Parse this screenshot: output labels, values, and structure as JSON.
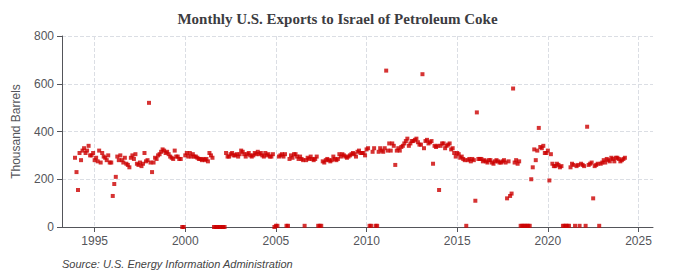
{
  "chart_data": {
    "type": "scatter",
    "title": "Monthly U.S. Exports to Israel of Petroleum Coke",
    "ylabel": "Thousand Barrels",
    "annotation": "Source: U.S. Energy Information Administration",
    "color": "#cc0000",
    "marker": "square",
    "grid": true,
    "xlim": [
      1993.2,
      2025.8
    ],
    "xticks": [
      1995,
      2000,
      2005,
      2010,
      2015,
      2020,
      2025
    ],
    "ylim": [
      0,
      800
    ],
    "yticks": [
      0,
      200,
      400,
      600,
      800
    ],
    "x": [
      1993.917,
      1994.0,
      1994.083,
      1994.167,
      1994.25,
      1994.333,
      1994.417,
      1994.5,
      1994.583,
      1994.667,
      1994.75,
      1994.833,
      1994.917,
      1995.0,
      1995.083,
      1995.167,
      1995.25,
      1995.333,
      1995.417,
      1995.5,
      1995.583,
      1995.667,
      1995.75,
      1995.833,
      1995.917,
      1996.0,
      1996.083,
      1996.167,
      1996.25,
      1996.333,
      1996.417,
      1996.5,
      1996.583,
      1996.667,
      1996.75,
      1996.833,
      1996.917,
      1997.0,
      1997.083,
      1997.167,
      1997.25,
      1997.333,
      1997.417,
      1997.5,
      1997.583,
      1997.667,
      1997.75,
      1997.833,
      1997.917,
      1998.0,
      1998.083,
      1998.167,
      1998.25,
      1998.333,
      1998.417,
      1998.5,
      1998.583,
      1998.667,
      1998.75,
      1998.833,
      1998.917,
      1999.0,
      1999.083,
      1999.167,
      1999.25,
      1999.333,
      1999.417,
      1999.5,
      1999.583,
      1999.667,
      1999.75,
      1999.833,
      1999.917,
      2000.0,
      2000.083,
      2000.167,
      2000.25,
      2000.333,
      2000.417,
      2000.5,
      2000.583,
      2000.667,
      2000.75,
      2000.833,
      2000.917,
      2001.0,
      2001.083,
      2001.167,
      2001.25,
      2001.333,
      2001.417,
      2001.5,
      2001.583,
      2001.667,
      2001.75,
      2001.833,
      2001.917,
      2002.0,
      2002.083,
      2002.167,
      2002.25,
      2002.333,
      2002.417,
      2002.5,
      2002.583,
      2002.667,
      2002.75,
      2002.833,
      2002.917,
      2003.0,
      2003.083,
      2003.167,
      2003.25,
      2003.333,
      2003.417,
      2003.5,
      2003.583,
      2003.667,
      2003.75,
      2003.833,
      2003.917,
      2004.0,
      2004.083,
      2004.167,
      2004.25,
      2004.333,
      2004.417,
      2004.5,
      2004.583,
      2004.667,
      2004.75,
      2004.833,
      2004.917,
      2005.0,
      2005.083,
      2005.167,
      2005.25,
      2005.333,
      2005.417,
      2005.5,
      2005.583,
      2005.667,
      2005.75,
      2005.833,
      2005.917,
      2006.0,
      2006.083,
      2006.167,
      2006.25,
      2006.333,
      2006.417,
      2006.5,
      2006.583,
      2006.667,
      2006.75,
      2006.833,
      2006.917,
      2007.0,
      2007.083,
      2007.167,
      2007.25,
      2007.333,
      2007.417,
      2007.5,
      2007.583,
      2007.667,
      2007.75,
      2007.833,
      2007.917,
      2008.0,
      2008.083,
      2008.167,
      2008.25,
      2008.333,
      2008.417,
      2008.5,
      2008.583,
      2008.667,
      2008.75,
      2008.833,
      2008.917,
      2009.0,
      2009.083,
      2009.167,
      2009.25,
      2009.333,
      2009.417,
      2009.5,
      2009.583,
      2009.667,
      2009.75,
      2009.833,
      2009.917,
      2010.0,
      2010.083,
      2010.167,
      2010.25,
      2010.333,
      2010.417,
      2010.5,
      2010.583,
      2010.667,
      2010.75,
      2010.833,
      2010.917,
      2011.0,
      2011.083,
      2011.167,
      2011.25,
      2011.333,
      2011.417,
      2011.5,
      2011.583,
      2011.667,
      2011.75,
      2011.833,
      2011.917,
      2012.0,
      2012.083,
      2012.167,
      2012.25,
      2012.333,
      2012.417,
      2012.5,
      2012.583,
      2012.667,
      2012.75,
      2012.833,
      2012.917,
      2013.0,
      2013.083,
      2013.167,
      2013.25,
      2013.333,
      2013.417,
      2013.5,
      2013.583,
      2013.667,
      2013.75,
      2013.833,
      2013.917,
      2014.0,
      2014.083,
      2014.167,
      2014.25,
      2014.333,
      2014.417,
      2014.5,
      2014.583,
      2014.667,
      2014.75,
      2014.833,
      2014.917,
      2015.0,
      2015.083,
      2015.167,
      2015.25,
      2015.333,
      2015.417,
      2015.5,
      2015.583,
      2015.667,
      2015.75,
      2015.833,
      2015.917,
      2016.0,
      2016.083,
      2016.167,
      2016.25,
      2016.333,
      2016.417,
      2016.5,
      2016.583,
      2016.667,
      2016.75,
      2016.833,
      2016.917,
      2017.0,
      2017.083,
      2017.167,
      2017.25,
      2017.333,
      2017.417,
      2017.5,
      2017.583,
      2017.667,
      2017.75,
      2017.833,
      2017.917,
      2018.0,
      2018.083,
      2018.167,
      2018.25,
      2018.333,
      2018.417,
      2018.5,
      2018.583,
      2018.667,
      2018.75,
      2018.833,
      2018.917,
      2019.0,
      2019.083,
      2019.167,
      2019.25,
      2019.333,
      2019.417,
      2019.5,
      2019.583,
      2019.667,
      2019.75,
      2019.833,
      2019.917,
      2020.0,
      2020.083,
      2020.167,
      2020.25,
      2020.333,
      2020.417,
      2020.5,
      2020.583,
      2020.667,
      2020.75,
      2020.833,
      2020.917,
      2021.0,
      2021.083,
      2021.167,
      2021.25,
      2021.333,
      2021.417,
      2021.5,
      2021.583,
      2021.667,
      2021.75,
      2021.833,
      2021.917,
      2022.0,
      2022.083,
      2022.167,
      2022.25,
      2022.333,
      2022.417,
      2022.5,
      2022.583,
      2022.667,
      2022.75,
      2022.833,
      2022.917,
      2023.0,
      2023.083,
      2023.167,
      2023.25,
      2023.333,
      2023.417,
      2023.5,
      2023.583,
      2023.667,
      2023.75,
      2023.833,
      2023.917,
      2024.0,
      2024.083,
      2024.167,
      2024.25
    ],
    "values": [
      290,
      230,
      155,
      310,
      280,
      320,
      330,
      310,
      320,
      340,
      300,
      300,
      310,
      280,
      290,
      275,
      320,
      270,
      310,
      295,
      290,
      280,
      300,
      270,
      270,
      130,
      180,
      210,
      295,
      280,
      300,
      280,
      270,
      290,
      265,
      260,
      250,
      290,
      300,
      285,
      305,
      265,
      260,
      270,
      255,
      265,
      310,
      275,
      280,
      520,
      270,
      230,
      270,
      290,
      285,
      300,
      305,
      315,
      325,
      320,
      310,
      315,
      305,
      295,
      290,
      285,
      320,
      295,
      295,
      285,
      285,
      0,
      0,
      300,
      310,
      295,
      310,
      295,
      305,
      295,
      295,
      290,
      285,
      285,
      280,
      285,
      280,
      285,
      275,
      310,
      300,
      290,
      0,
      0,
      0,
      0,
      0,
      0,
      0,
      0,
      310,
      295,
      295,
      305,
      310,
      300,
      300,
      305,
      295,
      305,
      320,
      315,
      305,
      295,
      305,
      310,
      300,
      295,
      300,
      310,
      305,
      315,
      305,
      310,
      300,
      295,
      310,
      300,
      305,
      295,
      295,
      305,
      0,
      5,
      5,
      295,
      300,
      305,
      295,
      305,
      5,
      5,
      285,
      300,
      290,
      305,
      305,
      295,
      285,
      295,
      285,
      280,
      5,
      280,
      290,
      285,
      295,
      285,
      280,
      285,
      295,
      5,
      5,
      5,
      275,
      270,
      280,
      285,
      280,
      275,
      280,
      295,
      285,
      280,
      285,
      305,
      295,
      305,
      300,
      295,
      290,
      295,
      300,
      305,
      310,
      305,
      295,
      315,
      320,
      310,
      310,
      310,
      300,
      325,
      330,
      5,
      5,
      315,
      330,
      5,
      5,
      315,
      330,
      320,
      315,
      330,
      655,
      320,
      350,
      320,
      350,
      340,
      260,
      320,
      330,
      320,
      335,
      340,
      350,
      360,
      370,
      340,
      350,
      360,
      360,
      365,
      370,
      355,
      345,
      345,
      640,
      330,
      360,
      365,
      350,
      355,
      360,
      265,
      340,
      335,
      340,
      155,
      340,
      350,
      350,
      330,
      340,
      345,
      350,
      325,
      330,
      310,
      295,
      310,
      305,
      290,
      295,
      285,
      280,
      5,
      280,
      285,
      275,
      285,
      280,
      110,
      480,
      285,
      285,
      285,
      275,
      280,
      275,
      270,
      280,
      280,
      270,
      265,
      275,
      280,
      275,
      270,
      270,
      275,
      280,
      270,
      120,
      275,
      130,
      140,
      580,
      270,
      280,
      265,
      275,
      5,
      5,
      5,
      5,
      5,
      5,
      5,
      200,
      250,
      325,
      280,
      320,
      415,
      335,
      330,
      340,
      310,
      310,
      320,
      195,
      305,
      265,
      255,
      255,
      265,
      260,
      250,
      255,
      5,
      5,
      5,
      5,
      5,
      250,
      265,
      260,
      5,
      255,
      260,
      5,
      265,
      260,
      255,
      5,
      420,
      260,
      265,
      270,
      120,
      255,
      260,
      265,
      5,
      265,
      270,
      280,
      270,
      285,
      280,
      275,
      290,
      285,
      275,
      290,
      290,
      285,
      275,
      280,
      285,
      290
    ]
  }
}
